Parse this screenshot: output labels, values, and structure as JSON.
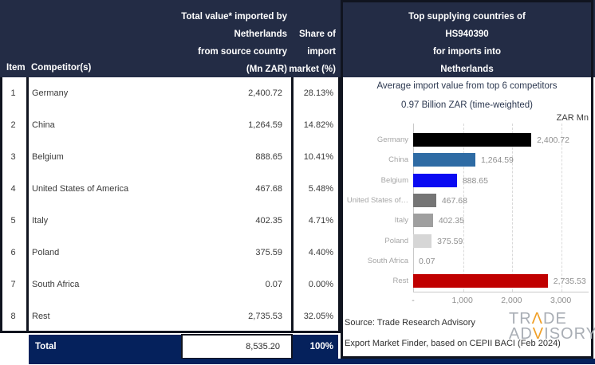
{
  "table": {
    "headers": {
      "item": "Item",
      "competitor": "Competitor(s)",
      "value_col_lines": [
        "Total value* imported by",
        "Netherlands",
        "from source country",
        "(Mn ZAR)"
      ],
      "share_col_lines": [
        "Share of",
        "import",
        "market (%)"
      ]
    },
    "rows": [
      {
        "item": "1",
        "competitor": "Germany",
        "value": "2,400.72",
        "share": "28.13%"
      },
      {
        "item": "2",
        "competitor": "China",
        "value": "1,264.59",
        "share": "14.82%"
      },
      {
        "item": "3",
        "competitor": "Belgium",
        "value": "888.65",
        "share": "10.41%"
      },
      {
        "item": "4",
        "competitor": "United States of America",
        "value": "467.68",
        "share": "5.48%"
      },
      {
        "item": "5",
        "competitor": "Italy",
        "value": "402.35",
        "share": "4.71%"
      },
      {
        "item": "6",
        "competitor": "Poland",
        "value": "375.59",
        "share": "4.40%"
      },
      {
        "item": "7",
        "competitor": "South Africa",
        "value": "0.07",
        "share": "0.00%"
      },
      {
        "item": "8",
        "competitor": "Rest",
        "value": "2,735.53",
        "share": "32.05%"
      }
    ],
    "total": {
      "label": "Total",
      "value": "8,535.20",
      "share": "100%"
    }
  },
  "panel": {
    "header_lines": [
      "Top supplying countries of",
      "HS940390",
      "for imports into",
      "Netherlands"
    ],
    "source_line1": "Source: Trade Research Advisory",
    "source_line2": "Export Market Finder, based on CEPII BACI (Feb 2024)",
    "logo": {
      "trade_pre": "TR",
      "trade_accent": "Λ",
      "trade_post": "DE",
      "adv_pre": "AD",
      "adv_accent": "V",
      "adv_post": "ISORY"
    }
  },
  "chart_data": {
    "type": "bar",
    "orientation": "horizontal",
    "title": "Average import value from top 6 competitors",
    "subtitle": "0.97 Billion ZAR (time-weighted)",
    "axis_unit": "ZAR Mn",
    "categories": [
      "Germany",
      "China",
      "Belgium",
      "United States of…",
      "Italy",
      "Poland",
      "South Africa",
      "Rest"
    ],
    "values": [
      2400.72,
      1264.59,
      888.65,
      467.68,
      402.35,
      375.59,
      0.07,
      2735.53
    ],
    "value_labels": [
      "2,400.72",
      "1,264.59",
      "888.65",
      "467.68",
      "402.35",
      "375.59",
      "0.07",
      "2,735.53"
    ],
    "bar_colors": [
      "#000000",
      "#2e6ba4",
      "#0a0af2",
      "#757575",
      "#9f9f9f",
      "#d6d6d6",
      "#d6d6d6",
      "#c00000"
    ],
    "x_ticks": [
      "-",
      "1,000",
      "2,000",
      "3,000"
    ],
    "x_tick_values": [
      0,
      1000,
      2000,
      3000
    ],
    "xlim": [
      0,
      3550
    ],
    "grid": "vertical-dashed",
    "legend": "none"
  },
  "colors": {
    "header_navy": "#232c45",
    "royal_navy": "#05215c",
    "border_black": "#10141f",
    "rest_red": "#c00000",
    "logo_orange": "#f0a028"
  }
}
